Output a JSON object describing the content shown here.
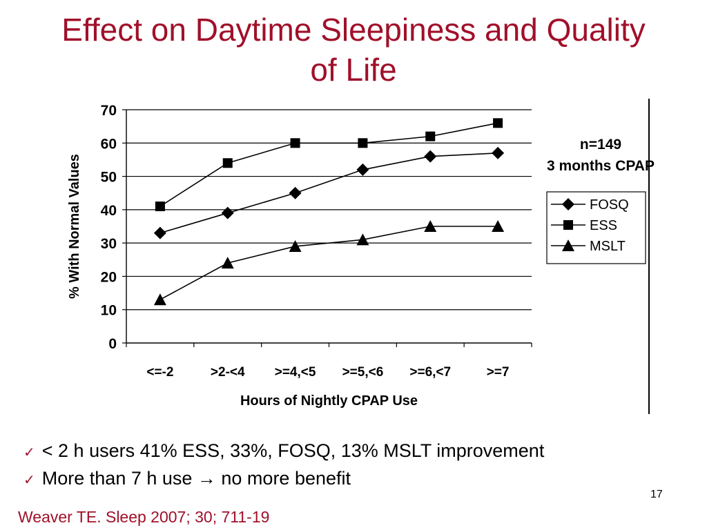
{
  "slide": {
    "title_lines": [
      "Effect on Daytime Sleepiness and Quality",
      "of Life"
    ],
    "annotation_lines": [
      "n=149",
      "3 months CPAP"
    ],
    "bullets": [
      "< 2 h users 41% ESS, 33%, FOSQ, 13% MSLT improvement",
      "More than 7 h use → no more benefit"
    ],
    "bullet_marker": "✓",
    "page_number": "17",
    "citation": "Weaver TE. Sleep 2007; 30; 711-19"
  },
  "colors": {
    "title": "#a0102a",
    "citation": "#a0102a",
    "series": "#000000",
    "grid": "#000000"
  },
  "chart_data": {
    "type": "line",
    "ylabel": "% With Normal Values",
    "xlabel": "Hours of Nightly CPAP Use",
    "categories": [
      "<=-2",
      ">2-<4",
      ">=4,<5",
      ">=5,<6",
      ">=6,<7",
      ">=7"
    ],
    "ylim": [
      0,
      70
    ],
    "yticks": [
      0,
      10,
      20,
      30,
      40,
      50,
      60,
      70
    ],
    "grid": "horizontal",
    "legend_position": "right",
    "series": [
      {
        "name": "FOSQ",
        "marker": "diamond",
        "values": [
          33,
          39,
          45,
          52,
          56,
          57
        ]
      },
      {
        "name": "ESS",
        "marker": "square",
        "values": [
          41,
          54,
          60,
          60,
          62,
          66
        ]
      },
      {
        "name": "MSLT",
        "marker": "triangle",
        "values": [
          13,
          24,
          29,
          31,
          35,
          35
        ]
      }
    ]
  }
}
